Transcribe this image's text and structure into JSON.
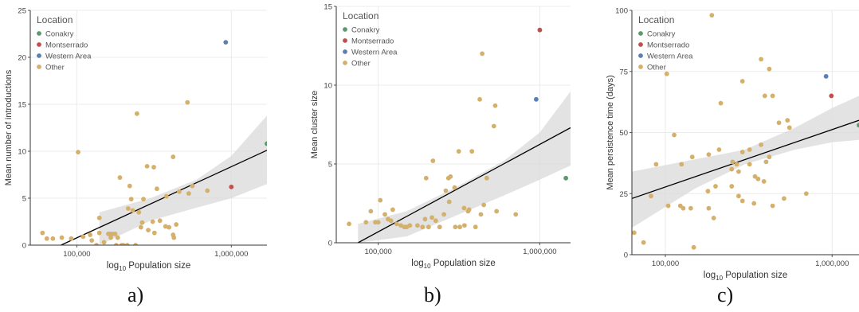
{
  "legend": {
    "title": "Location",
    "entries": [
      {
        "name": "Conakry",
        "color": "#5a9a6a"
      },
      {
        "name": "Montserrado",
        "color": "#c0504d"
      },
      {
        "name": "Western Area",
        "color": "#5b7fb3"
      },
      {
        "name": "Other",
        "color": "#d4b06a"
      }
    ]
  },
  "panel_labels": [
    "a)",
    "b)",
    "c)"
  ],
  "colors": {
    "Conakry": "#5a9a6a",
    "Montserrado": "#c0504d",
    "Western Area": "#5b7fb3",
    "Other": "#d4b06a",
    "fit_line": "#000000",
    "band": "#d9d9d9",
    "grid": "#ebebeb"
  },
  "chart_data": [
    {
      "type": "scatter",
      "title": "",
      "xlabel_main": "log",
      "xlabel_sub": "10",
      "xlabel_rest": " Population size",
      "ylabel": "Mean number of introductions",
      "xscale": "log",
      "xlim": [
        50000,
        1700000
      ],
      "ylim": [
        0,
        25
      ],
      "xticks": [
        100000,
        1000000
      ],
      "xtick_labels": [
        "100,000",
        "1,000,000"
      ],
      "yticks": [
        0,
        5,
        10,
        15,
        20,
        25
      ],
      "ytick_labels": [
        "0",
        "5",
        "10",
        "15",
        "20",
        "25"
      ],
      "legend_position": "top-left",
      "fit": {
        "x": [
          79000,
          1700000
        ],
        "y": [
          0,
          10.1
        ]
      },
      "band": {
        "x": [
          140000,
          300000,
          600000,
          1000000,
          1700000
        ],
        "lower": [
          0,
          2.6,
          4.0,
          5.0,
          6.5
        ],
        "upper": [
          3.5,
          5.0,
          7.0,
          9.5,
          13.8
        ]
      },
      "points": [
        {
          "x": 920000,
          "y": 21.6,
          "group": "Western Area"
        },
        {
          "x": 1700000,
          "y": 10.8,
          "group": "Conakry"
        },
        {
          "x": 1000000,
          "y": 6.2,
          "group": "Montserrado"
        },
        {
          "x": 520000,
          "y": 15.2,
          "group": "Other"
        },
        {
          "x": 102000,
          "y": 9.9,
          "group": "Other"
        },
        {
          "x": 245000,
          "y": 14.0,
          "group": "Other"
        },
        {
          "x": 420000,
          "y": 9.4,
          "group": "Other"
        },
        {
          "x": 285000,
          "y": 8.4,
          "group": "Other"
        },
        {
          "x": 315000,
          "y": 8.3,
          "group": "Other"
        },
        {
          "x": 190000,
          "y": 7.2,
          "group": "Other"
        },
        {
          "x": 220000,
          "y": 6.3,
          "group": "Other"
        },
        {
          "x": 560000,
          "y": 6.3,
          "group": "Other"
        },
        {
          "x": 330000,
          "y": 6.0,
          "group": "Other"
        },
        {
          "x": 460000,
          "y": 5.7,
          "group": "Other"
        },
        {
          "x": 700000,
          "y": 5.8,
          "group": "Other"
        },
        {
          "x": 530000,
          "y": 5.5,
          "group": "Other"
        },
        {
          "x": 225000,
          "y": 4.9,
          "group": "Other"
        },
        {
          "x": 270000,
          "y": 4.9,
          "group": "Other"
        },
        {
          "x": 380000,
          "y": 5.2,
          "group": "Other"
        },
        {
          "x": 215000,
          "y": 3.9,
          "group": "Other"
        },
        {
          "x": 230000,
          "y": 3.7,
          "group": "Other"
        },
        {
          "x": 252000,
          "y": 3.5,
          "group": "Other"
        },
        {
          "x": 140000,
          "y": 2.9,
          "group": "Other"
        },
        {
          "x": 345000,
          "y": 2.6,
          "group": "Other"
        },
        {
          "x": 310000,
          "y": 2.5,
          "group": "Other"
        },
        {
          "x": 265000,
          "y": 2.4,
          "group": "Other"
        },
        {
          "x": 440000,
          "y": 2.2,
          "group": "Other"
        },
        {
          "x": 375000,
          "y": 2.0,
          "group": "Other"
        },
        {
          "x": 395000,
          "y": 1.9,
          "group": "Other"
        },
        {
          "x": 260000,
          "y": 1.9,
          "group": "Other"
        },
        {
          "x": 290000,
          "y": 1.6,
          "group": "Other"
        },
        {
          "x": 318000,
          "y": 1.3,
          "group": "Other"
        },
        {
          "x": 420000,
          "y": 1.1,
          "group": "Other"
        },
        {
          "x": 425000,
          "y": 0.8,
          "group": "Other"
        },
        {
          "x": 140000,
          "y": 1.3,
          "group": "Other"
        },
        {
          "x": 160000,
          "y": 1.2,
          "group": "Other"
        },
        {
          "x": 165000,
          "y": 1.2,
          "group": "Other"
        },
        {
          "x": 170000,
          "y": 1.2,
          "group": "Other"
        },
        {
          "x": 177000,
          "y": 1.2,
          "group": "Other"
        },
        {
          "x": 122000,
          "y": 1.1,
          "group": "Other"
        },
        {
          "x": 184000,
          "y": 0.8,
          "group": "Other"
        },
        {
          "x": 166000,
          "y": 0.8,
          "group": "Other"
        },
        {
          "x": 110000,
          "y": 0.9,
          "group": "Other"
        },
        {
          "x": 92000,
          "y": 0.7,
          "group": "Other"
        },
        {
          "x": 80000,
          "y": 0.8,
          "group": "Other"
        },
        {
          "x": 70000,
          "y": 0.7,
          "group": "Other"
        },
        {
          "x": 64000,
          "y": 0.7,
          "group": "Other"
        },
        {
          "x": 60000,
          "y": 1.3,
          "group": "Other"
        },
        {
          "x": 125000,
          "y": 0.5,
          "group": "Other"
        },
        {
          "x": 150000,
          "y": 0.3,
          "group": "Other"
        },
        {
          "x": 180000,
          "y": 0.0,
          "group": "Other"
        },
        {
          "x": 200000,
          "y": 0.0,
          "group": "Other"
        },
        {
          "x": 212000,
          "y": 0.0,
          "group": "Other"
        },
        {
          "x": 240000,
          "y": 0.0,
          "group": "Other"
        },
        {
          "x": 195000,
          "y": 0.0,
          "group": "Other"
        },
        {
          "x": 134000,
          "y": 0.0,
          "group": "Other"
        }
      ]
    },
    {
      "type": "scatter",
      "title": "",
      "xlabel_main": "log",
      "xlabel_sub": "10",
      "xlabel_rest": " Population size",
      "ylabel": "Mean cluster size",
      "xscale": "log",
      "xlim": [
        55000,
        1550000
      ],
      "ylim": [
        0,
        15
      ],
      "xticks": [
        100000,
        1000000
      ],
      "xtick_labels": [
        "100,000",
        "1,000,000"
      ],
      "yticks": [
        0,
        5,
        10,
        15
      ],
      "ytick_labels": [
        "0",
        "5",
        "10",
        "15"
      ],
      "legend_position": "top-left",
      "fit": {
        "x": [
          75000,
          1550000
        ],
        "y": [
          0,
          7.3
        ]
      },
      "band": {
        "x": [
          75000,
          150000,
          300000,
          600000,
          1000000,
          1550000
        ],
        "lower": [
          0,
          0.4,
          1.7,
          3.0,
          4.0,
          4.9
        ],
        "upper": [
          1.2,
          2.0,
          3.5,
          5.2,
          7.0,
          9.6
        ]
      },
      "points": [
        {
          "x": 1000000,
          "y": 13.5,
          "group": "Montserrado"
        },
        {
          "x": 950000,
          "y": 9.1,
          "group": "Western Area"
        },
        {
          "x": 1450000,
          "y": 4.1,
          "group": "Conakry"
        },
        {
          "x": 440000,
          "y": 12.0,
          "group": "Other"
        },
        {
          "x": 425000,
          "y": 9.1,
          "group": "Other"
        },
        {
          "x": 530000,
          "y": 8.7,
          "group": "Other"
        },
        {
          "x": 520000,
          "y": 7.4,
          "group": "Other"
        },
        {
          "x": 380000,
          "y": 5.8,
          "group": "Other"
        },
        {
          "x": 315000,
          "y": 5.8,
          "group": "Other"
        },
        {
          "x": 218000,
          "y": 5.2,
          "group": "Other"
        },
        {
          "x": 470000,
          "y": 4.1,
          "group": "Other"
        },
        {
          "x": 280000,
          "y": 4.2,
          "group": "Other"
        },
        {
          "x": 272000,
          "y": 4.1,
          "group": "Other"
        },
        {
          "x": 198000,
          "y": 4.1,
          "group": "Other"
        },
        {
          "x": 297000,
          "y": 3.5,
          "group": "Other"
        },
        {
          "x": 262000,
          "y": 3.3,
          "group": "Other"
        },
        {
          "x": 103000,
          "y": 2.7,
          "group": "Other"
        },
        {
          "x": 275000,
          "y": 2.6,
          "group": "Other"
        },
        {
          "x": 450000,
          "y": 2.4,
          "group": "Other"
        },
        {
          "x": 340000,
          "y": 2.2,
          "group": "Other"
        },
        {
          "x": 360000,
          "y": 2.0,
          "group": "Other"
        },
        {
          "x": 365000,
          "y": 2.1,
          "group": "Other"
        },
        {
          "x": 540000,
          "y": 2.0,
          "group": "Other"
        },
        {
          "x": 123000,
          "y": 2.1,
          "group": "Other"
        },
        {
          "x": 90000,
          "y": 2.0,
          "group": "Other"
        },
        {
          "x": 110000,
          "y": 1.8,
          "group": "Other"
        },
        {
          "x": 115000,
          "y": 1.5,
          "group": "Other"
        },
        {
          "x": 120000,
          "y": 1.4,
          "group": "Other"
        },
        {
          "x": 195000,
          "y": 1.5,
          "group": "Other"
        },
        {
          "x": 215000,
          "y": 1.6,
          "group": "Other"
        },
        {
          "x": 227000,
          "y": 1.4,
          "group": "Other"
        },
        {
          "x": 255000,
          "y": 1.8,
          "group": "Other"
        },
        {
          "x": 432000,
          "y": 1.8,
          "group": "Other"
        },
        {
          "x": 710000,
          "y": 1.8,
          "group": "Other"
        },
        {
          "x": 96000,
          "y": 1.3,
          "group": "Other"
        },
        {
          "x": 100000,
          "y": 1.3,
          "group": "Other"
        },
        {
          "x": 130000,
          "y": 1.2,
          "group": "Other"
        },
        {
          "x": 138000,
          "y": 1.1,
          "group": "Other"
        },
        {
          "x": 145000,
          "y": 1.0,
          "group": "Other"
        },
        {
          "x": 150000,
          "y": 1.0,
          "group": "Other"
        },
        {
          "x": 157000,
          "y": 1.1,
          "group": "Other"
        },
        {
          "x": 175000,
          "y": 1.1,
          "group": "Other"
        },
        {
          "x": 188000,
          "y": 1.0,
          "group": "Other"
        },
        {
          "x": 205000,
          "y": 1.0,
          "group": "Other"
        },
        {
          "x": 240000,
          "y": 1.0,
          "group": "Other"
        },
        {
          "x": 300000,
          "y": 1.0,
          "group": "Other"
        },
        {
          "x": 320000,
          "y": 1.0,
          "group": "Other"
        },
        {
          "x": 342000,
          "y": 1.1,
          "group": "Other"
        },
        {
          "x": 400000,
          "y": 1.0,
          "group": "Other"
        },
        {
          "x": 84000,
          "y": 1.3,
          "group": "Other"
        },
        {
          "x": 66000,
          "y": 1.2,
          "group": "Other"
        }
      ]
    },
    {
      "type": "scatter",
      "title": "",
      "xlabel_main": "log",
      "xlabel_sub": "10",
      "xlabel_rest": " Population size",
      "ylabel": "Mean persistence time (days)",
      "xscale": "log",
      "xlim": [
        63000,
        1450000
      ],
      "ylim": [
        0,
        100
      ],
      "xticks": [
        100000,
        1000000
      ],
      "xtick_labels": [
        "100,000",
        "1,000,000"
      ],
      "yticks": [
        0,
        25,
        50,
        75,
        100
      ],
      "ytick_labels": [
        "0",
        "25",
        "50",
        "75",
        "100"
      ],
      "legend_position": "top-left",
      "fit": {
        "x": [
          63000,
          1450000
        ],
        "y": [
          23,
          55
        ]
      },
      "band": {
        "x": [
          63000,
          150000,
          300000,
          600000,
          1000000,
          1450000
        ],
        "lower": [
          11,
          27,
          37,
          43,
          46,
          47
        ],
        "upper": [
          34,
          39,
          43,
          52,
          60,
          65
        ]
      },
      "points": [
        {
          "x": 920000,
          "y": 73,
          "group": "Western Area"
        },
        {
          "x": 990000,
          "y": 65,
          "group": "Montserrado"
        },
        {
          "x": 1450000,
          "y": 53,
          "group": "Conakry"
        },
        {
          "x": 190000,
          "y": 98,
          "group": "Other"
        },
        {
          "x": 102000,
          "y": 74,
          "group": "Other"
        },
        {
          "x": 375000,
          "y": 80,
          "group": "Other"
        },
        {
          "x": 420000,
          "y": 76,
          "group": "Other"
        },
        {
          "x": 290000,
          "y": 71,
          "group": "Other"
        },
        {
          "x": 395000,
          "y": 65,
          "group": "Other"
        },
        {
          "x": 440000,
          "y": 65,
          "group": "Other"
        },
        {
          "x": 215000,
          "y": 62,
          "group": "Other"
        },
        {
          "x": 540000,
          "y": 55,
          "group": "Other"
        },
        {
          "x": 480000,
          "y": 54,
          "group": "Other"
        },
        {
          "x": 555000,
          "y": 52,
          "group": "Other"
        },
        {
          "x": 113000,
          "y": 49,
          "group": "Other"
        },
        {
          "x": 375000,
          "y": 45,
          "group": "Other"
        },
        {
          "x": 320000,
          "y": 43,
          "group": "Other"
        },
        {
          "x": 290000,
          "y": 42,
          "group": "Other"
        },
        {
          "x": 210000,
          "y": 43,
          "group": "Other"
        },
        {
          "x": 182000,
          "y": 41,
          "group": "Other"
        },
        {
          "x": 145000,
          "y": 40,
          "group": "Other"
        },
        {
          "x": 420000,
          "y": 40,
          "group": "Other"
        },
        {
          "x": 402000,
          "y": 38,
          "group": "Other"
        },
        {
          "x": 253000,
          "y": 38,
          "group": "Other"
        },
        {
          "x": 268000,
          "y": 37,
          "group": "Other"
        },
        {
          "x": 88000,
          "y": 37,
          "group": "Other"
        },
        {
          "x": 320000,
          "y": 37,
          "group": "Other"
        },
        {
          "x": 125000,
          "y": 37,
          "group": "Other"
        },
        {
          "x": 250000,
          "y": 35,
          "group": "Other"
        },
        {
          "x": 275000,
          "y": 34,
          "group": "Other"
        },
        {
          "x": 345000,
          "y": 32,
          "group": "Other"
        },
        {
          "x": 360000,
          "y": 31,
          "group": "Other"
        },
        {
          "x": 390000,
          "y": 30,
          "group": "Other"
        },
        {
          "x": 200000,
          "y": 28,
          "group": "Other"
        },
        {
          "x": 250000,
          "y": 28,
          "group": "Other"
        },
        {
          "x": 180000,
          "y": 26,
          "group": "Other"
        },
        {
          "x": 700000,
          "y": 25,
          "group": "Other"
        },
        {
          "x": 82000,
          "y": 24,
          "group": "Other"
        },
        {
          "x": 275000,
          "y": 24,
          "group": "Other"
        },
        {
          "x": 515000,
          "y": 23,
          "group": "Other"
        },
        {
          "x": 290000,
          "y": 22,
          "group": "Other"
        },
        {
          "x": 340000,
          "y": 21,
          "group": "Other"
        },
        {
          "x": 440000,
          "y": 20,
          "group": "Other"
        },
        {
          "x": 104000,
          "y": 20,
          "group": "Other"
        },
        {
          "x": 123000,
          "y": 20,
          "group": "Other"
        },
        {
          "x": 128000,
          "y": 19,
          "group": "Other"
        },
        {
          "x": 182000,
          "y": 19,
          "group": "Other"
        },
        {
          "x": 142000,
          "y": 19,
          "group": "Other"
        },
        {
          "x": 195000,
          "y": 15,
          "group": "Other"
        },
        {
          "x": 65000,
          "y": 9,
          "group": "Other"
        },
        {
          "x": 74000,
          "y": 5,
          "group": "Other"
        },
        {
          "x": 148000,
          "y": 3,
          "group": "Other"
        }
      ]
    }
  ]
}
